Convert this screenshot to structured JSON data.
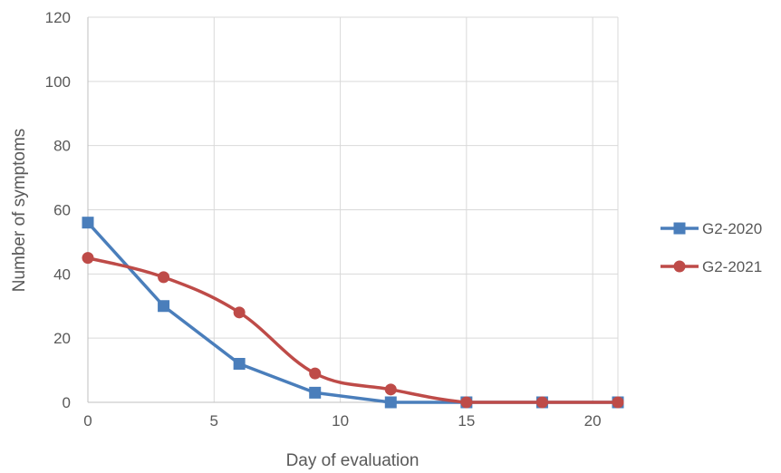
{
  "chart_data": {
    "type": "line",
    "title": "",
    "xlabel": "Day of evaluation",
    "ylabel": "Number of symptoms",
    "xlim": [
      0,
      21
    ],
    "ylim": [
      0,
      120
    ],
    "xticks": [
      0,
      5,
      10,
      15,
      20
    ],
    "yticks": [
      0,
      20,
      40,
      60,
      80,
      100,
      120
    ],
    "grid": true,
    "legend_position": "right",
    "series": [
      {
        "name": "G2-2020",
        "color": "#4a7ebb",
        "marker": "square",
        "smooth": false,
        "x": [
          0,
          3,
          6,
          9,
          12,
          15,
          18,
          21
        ],
        "y": [
          56,
          30,
          12,
          3,
          0,
          0,
          0,
          0
        ]
      },
      {
        "name": "G2-2021",
        "color": "#be4b48",
        "marker": "circle",
        "smooth": true,
        "x": [
          0,
          3,
          6,
          9,
          12,
          15,
          18,
          21
        ],
        "y": [
          45,
          39,
          28,
          9,
          4,
          0,
          0,
          0
        ]
      }
    ]
  }
}
